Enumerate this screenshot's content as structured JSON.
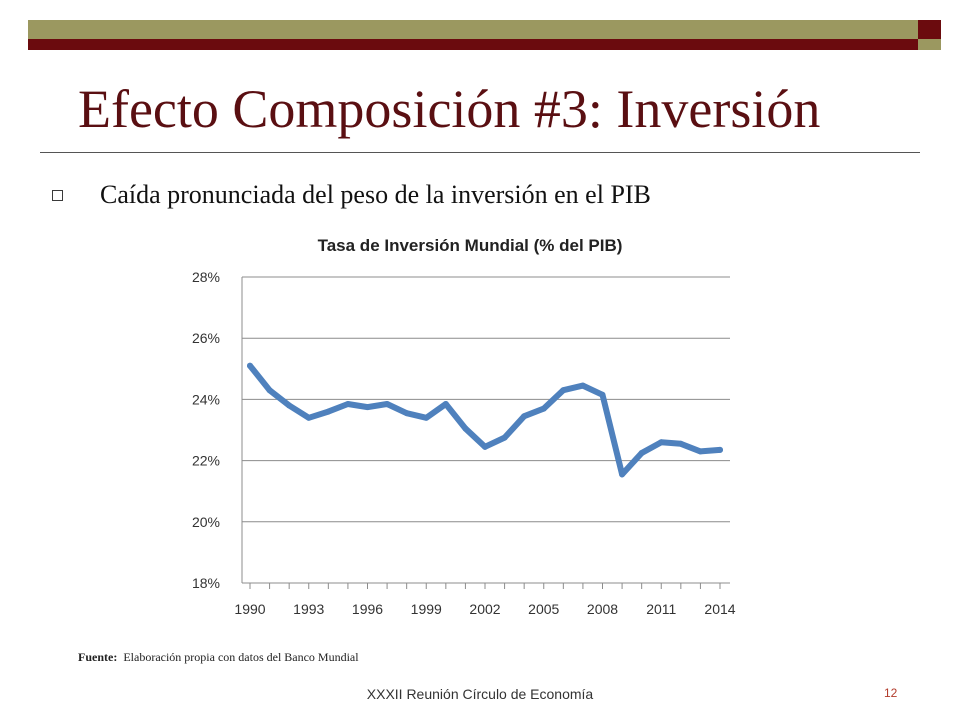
{
  "slide": {
    "title": "Efecto Composición #3: Inversión",
    "bullet": "Caída pronunciada del peso de la inversión en el PIB",
    "source_label": "Fuente:",
    "source_text": "Elaboración propia con datos del Banco Mundial",
    "footer": "XXXII Reunión Círculo de Economía",
    "page_number": "12",
    "colors": {
      "title": "#5a0f12",
      "bar_olive": "#9b9860",
      "bar_maroon": "#6b0b0e",
      "series_line": "#4f81bd"
    }
  },
  "chart_data": {
    "type": "line",
    "title": "Tasa de Inversión Mundial (% del PIB)",
    "xlabel": "",
    "ylabel": "",
    "ylim": [
      18,
      28
    ],
    "yticks": [
      18,
      20,
      22,
      24,
      26,
      28
    ],
    "ytick_labels": [
      "18%",
      "20%",
      "22%",
      "24%",
      "26%",
      "28%"
    ],
    "xticks": [
      1990,
      1993,
      1996,
      1999,
      2002,
      2005,
      2008,
      2011,
      2014
    ],
    "xtick_labels": [
      "1990",
      "1993",
      "1996",
      "1999",
      "2002",
      "2005",
      "2008",
      "2011",
      "2014"
    ],
    "xlim": [
      1990,
      2014
    ],
    "grid": "horizontal",
    "legend": "none",
    "x": [
      1990,
      1991,
      1992,
      1993,
      1994,
      1995,
      1996,
      1997,
      1998,
      1999,
      2000,
      2001,
      2002,
      2003,
      2004,
      2005,
      2006,
      2007,
      2008,
      2009,
      2010,
      2011,
      2012,
      2013,
      2014
    ],
    "series": [
      {
        "values": [
          25.1,
          24.3,
          23.8,
          23.4,
          23.6,
          23.85,
          23.75,
          23.85,
          23.55,
          23.4,
          23.85,
          23.05,
          22.45,
          22.75,
          23.45,
          23.7,
          24.3,
          24.45,
          24.15,
          21.55,
          22.25,
          22.6,
          22.55,
          22.3,
          22.35
        ]
      }
    ]
  }
}
